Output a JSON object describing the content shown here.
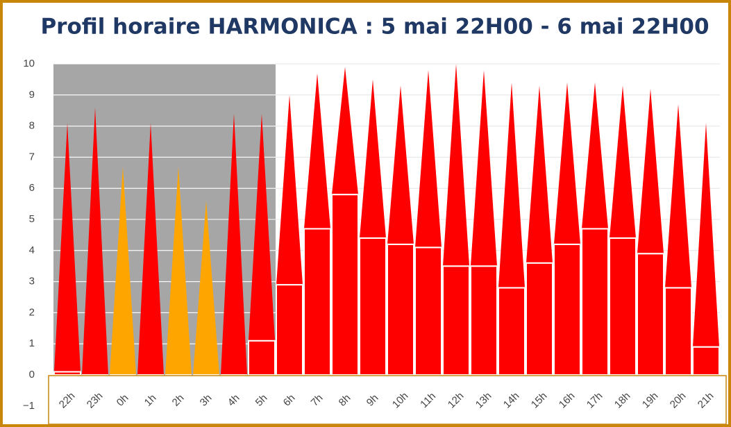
{
  "chart_data": {
    "type": "range_bar",
    "title": "Profil horaire HARMONICA : 5 mai 22H00 - 6 mai 22H00",
    "categories": [
      "22h",
      "23h",
      "0h",
      "1h",
      "2h",
      "3h",
      "4h",
      "5h",
      "6h",
      "7h",
      "8h",
      "9h",
      "10h",
      "11h",
      "12h",
      "13h",
      "14h",
      "15h",
      "16h",
      "17h",
      "18h",
      "19h",
      "20h",
      "21h"
    ],
    "values": [
      0.1,
      0,
      0,
      0,
      0,
      0,
      0,
      1.1,
      2.9,
      4.7,
      5.8,
      4.4,
      4.2,
      4.1,
      3.5,
      3.5,
      2.8,
      3.6,
      4.2,
      4.7,
      4.4,
      3.9,
      2.8,
      0.9
    ],
    "peak_values": [
      8.1,
      8.6,
      6.7,
      8.1,
      6.7,
      5.6,
      8.4,
      8.4,
      9.0,
      9.7,
      9.9,
      9.5,
      9.3,
      9.8,
      10.0,
      9.8,
      9.4,
      9.3,
      9.4,
      9.4,
      9.3,
      9.2,
      8.7,
      8.1
    ],
    "colors": [
      "#ff0000",
      "#ff0000",
      "#ffa500",
      "#ff0000",
      "#ffa500",
      "#ffa500",
      "#ff0000",
      "#ff0000",
      "#ff0000",
      "#ff0000",
      "#ff0000",
      "#ff0000",
      "#ff0000",
      "#ff0000",
      "#ff0000",
      "#ff0000",
      "#ff0000",
      "#ff0000",
      "#ff0000",
      "#ff0000",
      "#ff0000",
      "#ff0000",
      "#ff0000",
      "#ff0000"
    ],
    "shade_band": {
      "from": 0,
      "to": 7,
      "color": "#a6a6a6"
    },
    "ylim": [
      -1,
      10
    ],
    "yticks": [
      {
        "value": -1,
        "label": "−1"
      },
      0,
      1,
      2,
      3,
      4,
      5,
      6,
      7,
      8,
      9,
      10
    ],
    "grid": true
  }
}
